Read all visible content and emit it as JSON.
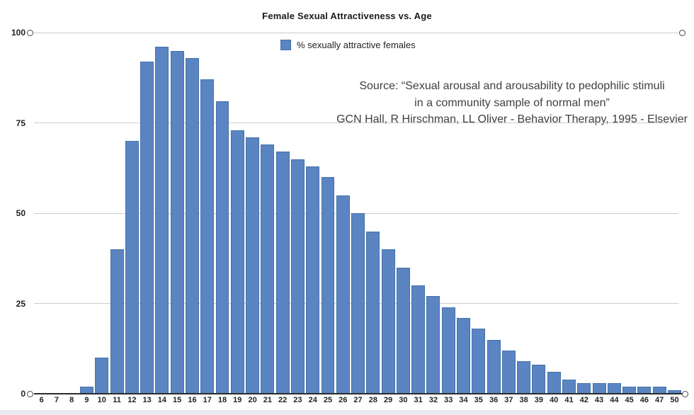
{
  "chart_data": {
    "type": "bar",
    "title": "Female Sexual Attractiveness vs. Age",
    "legend": "% sexually attractive females",
    "source_lines": [
      "Source: “Sexual arousal and arousability to pedophilic stimuli",
      "in a community sample of normal men”",
      "GCN Hall, R Hirschman, LL Oliver - Behavior Therapy, 1995 - Elsevier"
    ],
    "xlabel": "",
    "ylabel": "",
    "categories": [
      6,
      7,
      8,
      9,
      10,
      11,
      12,
      13,
      14,
      15,
      16,
      17,
      18,
      19,
      20,
      21,
      22,
      23,
      24,
      25,
      26,
      27,
      28,
      29,
      30,
      31,
      32,
      33,
      34,
      35,
      36,
      37,
      38,
      39,
      40,
      41,
      42,
      43,
      44,
      45,
      46,
      47,
      50
    ],
    "values": [
      0,
      0,
      0,
      2,
      10,
      40,
      70,
      92,
      96,
      95,
      93,
      87,
      81,
      73,
      71,
      69,
      67,
      65,
      63,
      60,
      55,
      50,
      45,
      40,
      35,
      30,
      27,
      24,
      21,
      18,
      15,
      12,
      9,
      8,
      6,
      4,
      3,
      3,
      3,
      2,
      2,
      2,
      1
    ],
    "yticks": [
      0,
      25,
      50,
      75,
      100
    ],
    "ylim": [
      0,
      100
    ],
    "grid": true,
    "legend_position": "top-center",
    "colors": {
      "bar_fill": "#5b84c2",
      "bar_border": "#4472a8",
      "gridline": "#cccccc",
      "axis": "#2b2b2b",
      "text": "#222222"
    }
  }
}
